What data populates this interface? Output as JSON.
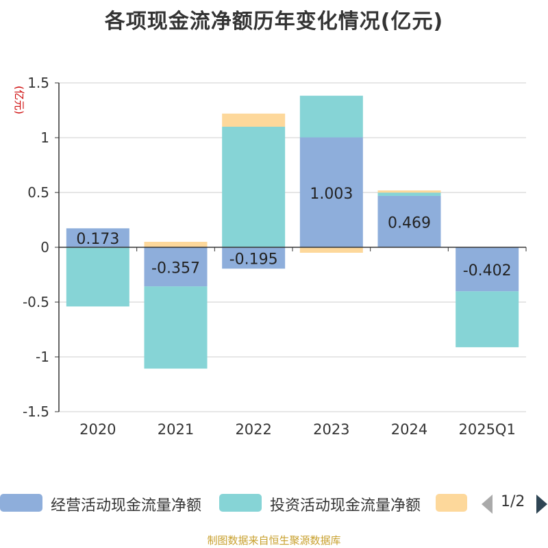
{
  "title": "各项现金流净额历年变化情况(亿元)",
  "source": "制图数据来自恒生聚源数据库",
  "pager": "1/2",
  "chart_data": {
    "type": "bar",
    "stacked": true,
    "categories": [
      "2020",
      "2021",
      "2022",
      "2023",
      "2024",
      "2025Q1"
    ],
    "ylabel": "(亿元)",
    "ylim": [
      -1.5,
      1.5
    ],
    "yticks": [
      {
        "value": 1.5,
        "label": "1.5"
      },
      {
        "value": 1,
        "label": "1"
      },
      {
        "value": 0.5,
        "label": "0.5"
      },
      {
        "value": 0,
        "label": "0"
      },
      {
        "value": -0.5,
        "label": "-0.5"
      },
      {
        "value": -1,
        "label": "-1"
      },
      {
        "value": -1.5,
        "label": "-1.5"
      }
    ],
    "grid": true,
    "legend_position": "bottom",
    "series": [
      {
        "name": "经营活动现金流量净额",
        "color": "#8eaedb",
        "values": [
          0.173,
          -0.357,
          -0.195,
          1.003,
          0.469,
          -0.402
        ],
        "labels": [
          "0.173",
          "-0.357",
          "-0.195",
          "1.003",
          "0.469",
          "-0.402"
        ]
      },
      {
        "name": "投资活动现金流量净额",
        "color": "#86d4d6",
        "values": [
          -0.54,
          -0.75,
          1.1,
          0.38,
          0.03,
          -0.51
        ]
      },
      {
        "name": "",
        "color": "#fdd89b",
        "values": [
          0,
          0.05,
          0.12,
          -0.05,
          0.02,
          0
        ]
      }
    ]
  }
}
